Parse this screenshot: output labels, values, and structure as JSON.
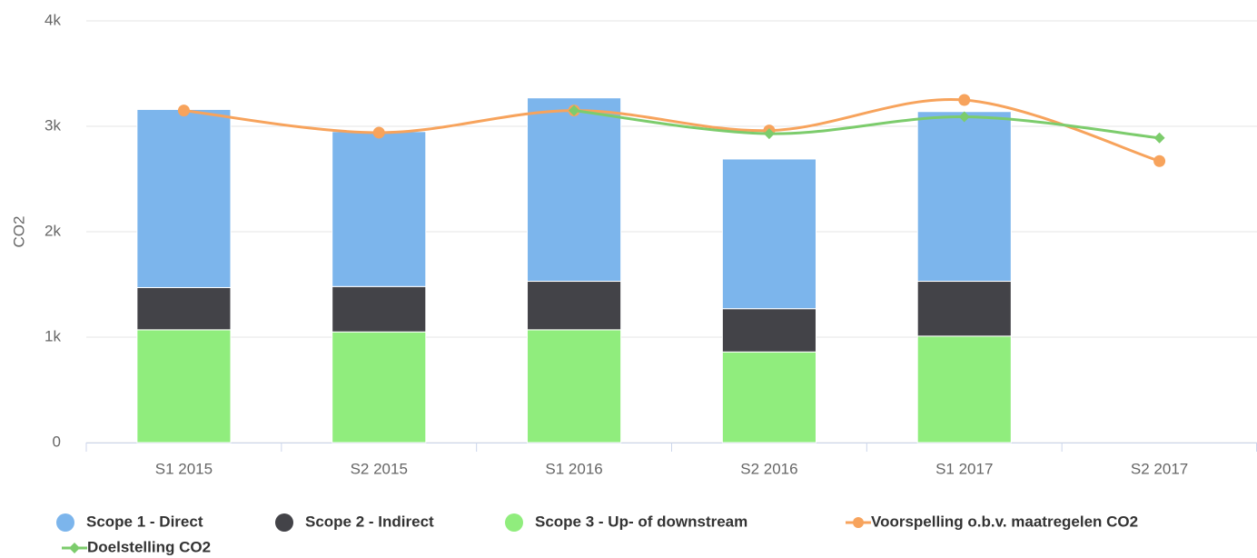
{
  "chart_data": {
    "type": "bar",
    "stacked": true,
    "y_axis_label": "CO2",
    "categories": [
      "S1 2015",
      "S2 2015",
      "S1 2016",
      "S2 2016",
      "S1 2017",
      "S2 2017"
    ],
    "series": [
      {
        "name": "Scope 3 - Up- of downstream",
        "color": "#90ed7d",
        "values": [
          1070,
          1050,
          1070,
          860,
          1010,
          null
        ]
      },
      {
        "name": "Scope 2 - Indirect",
        "color": "#434348",
        "values": [
          400,
          430,
          460,
          410,
          520,
          null
        ]
      },
      {
        "name": "Scope 1 - Direct",
        "color": "#7cb5ec",
        "values": [
          1690,
          1470,
          1740,
          1420,
          1610,
          null
        ]
      },
      {
        "name": "Voorspelling o.b.v. maatregelen CO2",
        "type": "spline",
        "marker": "circle",
        "color": "#f7a35c",
        "values": [
          3150,
          2940,
          3150,
          2960,
          3250,
          2670
        ]
      },
      {
        "name": "Doelstelling CO2",
        "type": "spline",
        "marker": "diamond",
        "color": "#7ccc6c",
        "values": [
          null,
          null,
          3150,
          2930,
          3090,
          2890
        ]
      }
    ],
    "ylim": [
      0,
      4000
    ],
    "yticks": [
      0,
      {
        "value": 1000,
        "label": "1k"
      },
      {
        "value": 2000,
        "label": "2k"
      },
      {
        "value": 3000,
        "label": "3k"
      },
      {
        "value": 4000,
        "label": "4k"
      }
    ],
    "grid": true
  }
}
